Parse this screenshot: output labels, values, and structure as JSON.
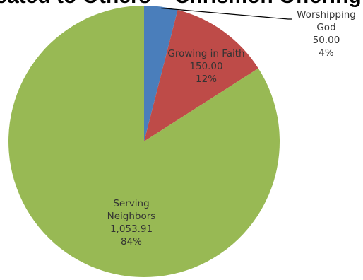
{
  "chart_data": {
    "type": "pie",
    "title": "Dedicated to Others – Chrismon Offering",
    "start_angle_deg": 0,
    "direction": "clockwise",
    "slices": [
      {
        "key": "worshipping",
        "label_lines": [
          "Worshipping",
          "God"
        ],
        "value": 50.0,
        "value_text": "50.00",
        "percent_text": "4%",
        "color": "#4a7ebb"
      },
      {
        "key": "growing",
        "label_lines": [
          "Growing in Faith"
        ],
        "value": 150.0,
        "value_text": "150.00",
        "percent_text": "12%",
        "color": "#be4b48"
      },
      {
        "key": "serving",
        "label_lines": [
          "Serving",
          "Neighbors"
        ],
        "value": 1053.91,
        "value_text": "1,053.91",
        "percent_text": "84%",
        "color": "#98b954"
      }
    ]
  }
}
